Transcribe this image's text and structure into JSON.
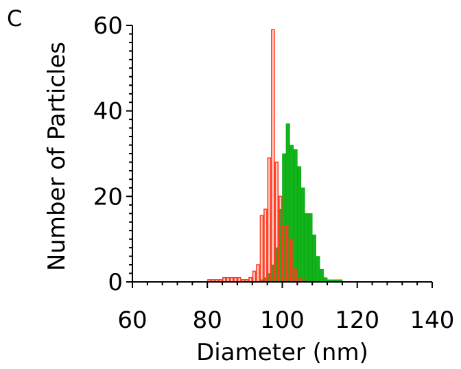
{
  "panel_label": "C",
  "chart_data": {
    "type": "bar",
    "xlabel": "Diameter (nm)",
    "ylabel": "Number of Particles",
    "xlim": [
      60,
      140
    ],
    "ylim": [
      0,
      60
    ],
    "x_ticks": [
      60,
      80,
      100,
      120,
      140
    ],
    "y_ticks": [
      0,
      20,
      40,
      60
    ],
    "bin_width": 1,
    "grid": false,
    "legend": "none",
    "series": [
      {
        "style": "outline",
        "color": "#ff3b1f",
        "x": [
          80,
          81,
          82,
          83,
          84,
          85,
          86,
          87,
          88,
          89,
          90,
          91,
          92,
          93,
          94,
          95,
          96,
          97,
          98,
          99,
          100,
          101,
          102,
          103,
          104,
          105
        ],
        "values": [
          0.5,
          0.5,
          0.5,
          0.5,
          1,
          1,
          1,
          1,
          1,
          0.5,
          0.5,
          1,
          2.5,
          4,
          15.5,
          17,
          29,
          59,
          28,
          20,
          13,
          13,
          10,
          3,
          1,
          0.5
        ]
      },
      {
        "style": "filled",
        "color": "#11b51a",
        "x": [
          94,
          95,
          96,
          97,
          98,
          99,
          100,
          101,
          102,
          103,
          104,
          105,
          106,
          107,
          108,
          109,
          110,
          111,
          112,
          113,
          114,
          115
        ],
        "values": [
          0.5,
          1,
          2,
          4,
          8,
          17,
          30,
          37,
          32,
          31,
          27,
          22,
          16,
          16,
          11,
          6,
          3,
          1,
          0.5,
          0.5,
          0.5,
          0.5
        ]
      }
    ]
  }
}
